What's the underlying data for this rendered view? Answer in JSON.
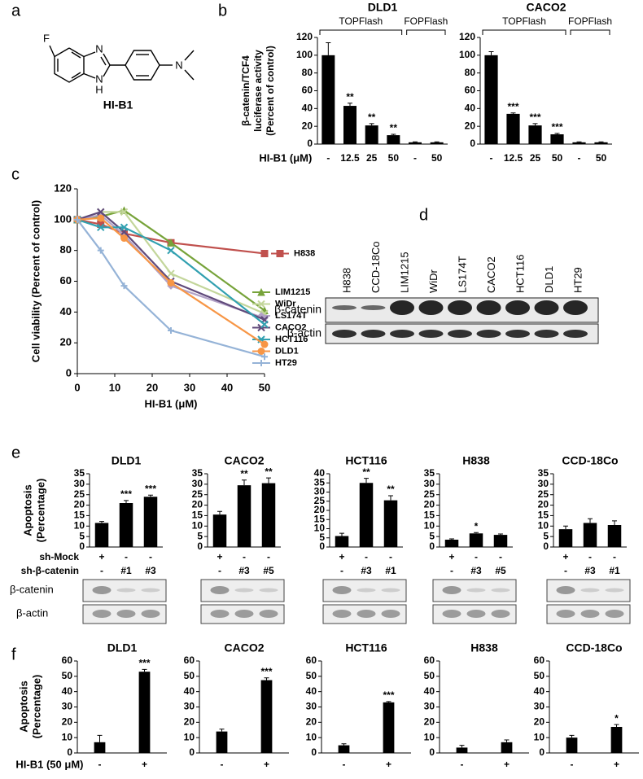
{
  "panel_labels": [
    "a",
    "b",
    "c",
    "d",
    "e",
    "f"
  ],
  "compound": {
    "name": "HI-B1",
    "atoms": [
      "F",
      "N",
      "N",
      "H",
      "N"
    ]
  },
  "blot_d": {
    "lanes": [
      "H838",
      "CCD-18Co",
      "LIM1215",
      "WiDr",
      "LS174T",
      "CACO2",
      "HCT116",
      "DLD1",
      "HT29"
    ],
    "rows": [
      "β-catenin",
      "β-actin"
    ]
  },
  "panel_e": {
    "ylabel": [
      "Apoptosis",
      "(Percentage)"
    ],
    "row_labels": [
      "sh-Mock",
      "sh-β-catenin"
    ],
    "blot_rows": [
      "β-catenin",
      "β-actin"
    ]
  },
  "panel_f": {
    "ylabel": [
      "Apoptosis",
      "(Percentage)"
    ]
  },
  "chart_data": [
    {
      "type": "bar",
      "title": "DLD1",
      "ylabel": [
        "β-catenin/TCF4",
        "luciferase activity",
        "(Percent of control)"
      ],
      "xlabel": "HI-B1 (μM)",
      "groups": [
        {
          "name": "TOPFlash",
          "categories": [
            "-",
            "12.5",
            "25",
            "50"
          ]
        },
        {
          "name": "FOPFlash",
          "categories": [
            "-",
            "50"
          ]
        }
      ],
      "values": [
        100,
        43,
        21,
        10,
        2,
        2
      ],
      "errors": [
        14,
        3,
        2,
        1,
        0.5,
        0.5
      ],
      "annotations": [
        null,
        "**",
        "**",
        "**",
        null,
        null
      ],
      "color": "#000000",
      "ylim": [
        0,
        120
      ],
      "yticks": [
        0,
        20,
        40,
        60,
        80,
        100,
        120
      ]
    },
    {
      "type": "bar",
      "title": "CACO2",
      "groups": [
        {
          "name": "TOPFlash",
          "categories": [
            "-",
            "12.5",
            "25",
            "50"
          ]
        },
        {
          "name": "FOPFlash",
          "categories": [
            "-",
            "50"
          ]
        }
      ],
      "values": [
        100,
        34,
        21,
        11,
        2,
        2
      ],
      "errors": [
        4,
        1,
        2,
        1,
        0.5,
        0.5
      ],
      "annotations": [
        null,
        "***",
        "***",
        "***",
        null,
        null
      ],
      "color": "#000000",
      "ylim": [
        0,
        120
      ],
      "yticks": [
        0,
        20,
        40,
        60,
        80,
        100,
        120
      ]
    },
    {
      "type": "line",
      "xlabel": "HI-B1 (μM)",
      "ylabel": "Cell viability (Percent of control)",
      "x": [
        0,
        6.25,
        12.5,
        25,
        50
      ],
      "xlim": [
        0,
        50
      ],
      "xticks": [
        0,
        10,
        20,
        30,
        40,
        50
      ],
      "ylim": [
        0,
        120
      ],
      "yticks": [
        0,
        20,
        40,
        60,
        80,
        100,
        120
      ],
      "series": [
        {
          "name": "H838",
          "color": "#c0504d",
          "marker": "square",
          "values": [
            100,
            97,
            91,
            85,
            78
          ]
        },
        {
          "name": "LIM1215",
          "color": "#77a33a",
          "marker": "triangle",
          "values": [
            100,
            102,
            106,
            85,
            41
          ]
        },
        {
          "name": "WiDr",
          "color": "#c3d69b",
          "marker": "x",
          "values": [
            100,
            105,
            105,
            65,
            39
          ]
        },
        {
          "name": "LS174T",
          "color": "#b3a2c7",
          "marker": "diamond",
          "values": [
            100,
            103,
            90,
            57,
            36
          ]
        },
        {
          "name": "CACO2",
          "color": "#604a7b",
          "marker": "x",
          "values": [
            100,
            105,
            92,
            60,
            35
          ]
        },
        {
          "name": "HCT116",
          "color": "#31a0b0",
          "marker": "x",
          "values": [
            100,
            95,
            95,
            80,
            32
          ]
        },
        {
          "name": "DLD1",
          "color": "#f79646",
          "marker": "circle",
          "values": [
            100,
            101,
            88,
            59,
            19
          ]
        },
        {
          "name": "HT29",
          "color": "#95b3d7",
          "marker": "plus",
          "values": [
            100,
            80,
            57,
            28,
            11
          ]
        }
      ]
    },
    {
      "type": "bar",
      "title": "DLD1",
      "sh_mock": [
        "+",
        "-",
        "-"
      ],
      "categories": [
        "-",
        "#1",
        "#3"
      ],
      "values": [
        11.5,
        21,
        24
      ],
      "errors": [
        0.7,
        1.2,
        0.8
      ],
      "annotations": [
        null,
        "***",
        "***"
      ],
      "color": "#000000",
      "ylim": [
        0,
        35
      ],
      "yticks": [
        0,
        5,
        10,
        15,
        20,
        25,
        30,
        35
      ]
    },
    {
      "type": "bar",
      "title": "CACO2",
      "sh_mock": [
        "+",
        "-",
        "-"
      ],
      "categories": [
        "-",
        "#3",
        "#5"
      ],
      "values": [
        15.5,
        29.5,
        30.5
      ],
      "errors": [
        1.5,
        2.5,
        2.5
      ],
      "annotations": [
        null,
        "**",
        "**"
      ],
      "color": "#000000",
      "ylim": [
        0,
        35
      ],
      "yticks": [
        0,
        5,
        10,
        15,
        20,
        25,
        30,
        35
      ]
    },
    {
      "type": "bar",
      "title": "HCT116",
      "sh_mock": [
        "+",
        "-",
        "-"
      ],
      "categories": [
        "-",
        "#3",
        "#1"
      ],
      "values": [
        6,
        35,
        25.5
      ],
      "errors": [
        1.5,
        2.5,
        2.5
      ],
      "annotations": [
        null,
        "**",
        "**"
      ],
      "color": "#000000",
      "ylim": [
        0,
        40
      ],
      "yticks": [
        0,
        5,
        10,
        15,
        20,
        25,
        30,
        35,
        40
      ]
    },
    {
      "type": "bar",
      "title": "H838",
      "sh_mock": [
        "+",
        "-",
        "-"
      ],
      "categories": [
        "-",
        "#3",
        "#5"
      ],
      "values": [
        3.5,
        6.5,
        5.8
      ],
      "errors": [
        0.4,
        0.4,
        0.4
      ],
      "annotations": [
        null,
        "*",
        null
      ],
      "color": "#000000",
      "ylim": [
        0,
        35
      ],
      "yticks": [
        0,
        5,
        10,
        15,
        20,
        25,
        30,
        35
      ]
    },
    {
      "type": "bar",
      "title": "CCD-18Co",
      "sh_mock": [
        "+",
        "-",
        "-"
      ],
      "categories": [
        "-",
        "#3",
        "#1"
      ],
      "values": [
        8.5,
        11.5,
        10.5
      ],
      "errors": [
        1.5,
        2,
        2
      ],
      "annotations": [
        null,
        null,
        null
      ],
      "color": "#000000",
      "ylim": [
        0,
        35
      ],
      "yticks": [
        0,
        5,
        10,
        15,
        20,
        25,
        30,
        35
      ]
    },
    {
      "type": "bar",
      "title": "DLD1",
      "xlabel": "HI-B1 (50 μM)",
      "categories": [
        "-",
        "+"
      ],
      "values": [
        7,
        53
      ],
      "errors": [
        4.5,
        1.5
      ],
      "annotations": [
        null,
        "***"
      ],
      "color": "#000000",
      "ylim": [
        0,
        60
      ],
      "yticks": [
        0,
        10,
        20,
        30,
        40,
        50,
        60
      ]
    },
    {
      "type": "bar",
      "title": "CACO2",
      "categories": [
        "-",
        "+"
      ],
      "values": [
        14,
        47.5
      ],
      "errors": [
        1.5,
        1.5
      ],
      "annotations": [
        null,
        "***"
      ],
      "color": "#000000",
      "ylim": [
        0,
        60
      ],
      "yticks": [
        0,
        10,
        20,
        30,
        40,
        50,
        60
      ]
    },
    {
      "type": "bar",
      "title": "HCT116",
      "categories": [
        "-",
        "+"
      ],
      "values": [
        5,
        33
      ],
      "errors": [
        1,
        0.5
      ],
      "annotations": [
        null,
        "***"
      ],
      "color": "#000000",
      "ylim": [
        0,
        60
      ],
      "yticks": [
        0,
        10,
        20,
        30,
        40,
        50,
        60
      ]
    },
    {
      "type": "bar",
      "title": "H838",
      "categories": [
        "-",
        "+"
      ],
      "values": [
        3.5,
        7
      ],
      "errors": [
        1.5,
        1.5
      ],
      "annotations": [
        null,
        null
      ],
      "color": "#000000",
      "ylim": [
        0,
        60
      ],
      "yticks": [
        0,
        10,
        20,
        30,
        40,
        50,
        60
      ]
    },
    {
      "type": "bar",
      "title": "CCD-18Co",
      "categories": [
        "-",
        "+"
      ],
      "values": [
        10,
        17
      ],
      "errors": [
        1.5,
        1.5
      ],
      "annotations": [
        null,
        "*"
      ],
      "color": "#000000",
      "ylim": [
        0,
        60
      ],
      "yticks": [
        0,
        10,
        20,
        30,
        40,
        50,
        60
      ]
    }
  ]
}
